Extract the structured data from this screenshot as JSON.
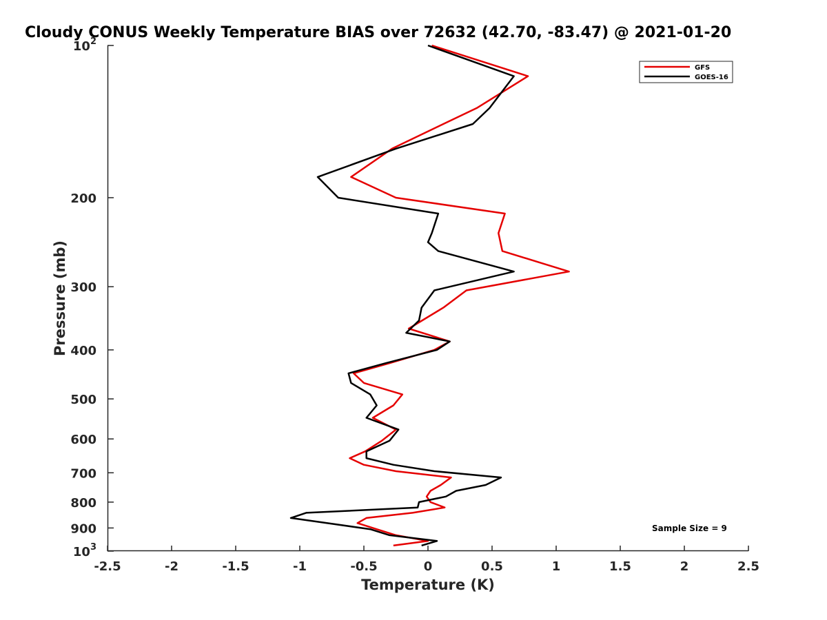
{
  "chart_data": {
    "type": "line",
    "title": "Cloudy CONUS Weekly Temperature BIAS over 72632 (42.70, -83.47) @ 2021-01-20",
    "xlabel": "Temperature (K)",
    "ylabel": "Pressure (mb)",
    "xlim": [
      -2.5,
      2.5
    ],
    "ylim": [
      100,
      1000
    ],
    "y_scale": "log",
    "y_reversed": true,
    "grid": false,
    "legend_position": "top-right",
    "annotation": "Sample Size = 9",
    "x_ticks": [
      {
        "value": -2.5,
        "label": "-2.5"
      },
      {
        "value": -2,
        "label": "-2"
      },
      {
        "value": -1.5,
        "label": "-1.5"
      },
      {
        "value": -1,
        "label": "-1"
      },
      {
        "value": -0.5,
        "label": "-0.5"
      },
      {
        "value": 0,
        "label": "0"
      },
      {
        "value": 0.5,
        "label": "0.5"
      },
      {
        "value": 1,
        "label": "1"
      },
      {
        "value": 1.5,
        "label": "1.5"
      },
      {
        "value": 2,
        "label": "2"
      },
      {
        "value": 2.5,
        "label": "2.5"
      }
    ],
    "y_ticks": [
      {
        "value": 100,
        "base": "10",
        "exp": "2"
      },
      {
        "value": 200,
        "label": "200"
      },
      {
        "value": 300,
        "label": "300"
      },
      {
        "value": 400,
        "label": "400"
      },
      {
        "value": 500,
        "label": "500"
      },
      {
        "value": 600,
        "label": "600"
      },
      {
        "value": 700,
        "label": "700"
      },
      {
        "value": 800,
        "label": "800"
      },
      {
        "value": 900,
        "label": "900"
      },
      {
        "value": 1000,
        "base": "10",
        "exp": "3"
      }
    ],
    "series": [
      {
        "name": "GFS",
        "color": "#e50000",
        "points": [
          [
            0.03,
            100
          ],
          [
            0.78,
            115
          ],
          [
            0.38,
            133
          ],
          [
            0.12,
            143
          ],
          [
            -0.28,
            160
          ],
          [
            -0.6,
            182
          ],
          [
            -0.25,
            200
          ],
          [
            0.6,
            215
          ],
          [
            0.55,
            235
          ],
          [
            0.58,
            255
          ],
          [
            1.1,
            280
          ],
          [
            0.3,
            305
          ],
          [
            0.12,
            330
          ],
          [
            -0.15,
            363
          ],
          [
            0.17,
            385
          ],
          [
            0.05,
            400
          ],
          [
            -0.3,
            425
          ],
          [
            -0.58,
            445
          ],
          [
            -0.5,
            465
          ],
          [
            -0.2,
            490
          ],
          [
            -0.27,
            515
          ],
          [
            -0.43,
            545
          ],
          [
            -0.25,
            575
          ],
          [
            -0.36,
            605
          ],
          [
            -0.49,
            635
          ],
          [
            -0.61,
            655
          ],
          [
            -0.5,
            675
          ],
          [
            -0.25,
            695
          ],
          [
            0.18,
            715
          ],
          [
            0.1,
            740
          ],
          [
            0.02,
            760
          ],
          [
            -0.01,
            780
          ],
          [
            0.02,
            800
          ],
          [
            0.13,
            820
          ],
          [
            -0.12,
            840
          ],
          [
            -0.48,
            860
          ],
          [
            -0.55,
            880
          ],
          [
            -0.4,
            905
          ],
          [
            -0.25,
            930
          ],
          [
            0.0,
            955
          ],
          [
            -0.27,
            975
          ]
        ]
      },
      {
        "name": "GOES-16",
        "color": "#000000",
        "points": [
          [
            0.0,
            100
          ],
          [
            0.67,
            115
          ],
          [
            0.48,
            133
          ],
          [
            0.35,
            143
          ],
          [
            -0.25,
            160
          ],
          [
            -0.86,
            182
          ],
          [
            -0.7,
            200
          ],
          [
            0.08,
            215
          ],
          [
            0.03,
            235
          ],
          [
            0.0,
            245
          ],
          [
            0.08,
            255
          ],
          [
            0.67,
            280
          ],
          [
            0.05,
            305
          ],
          [
            -0.05,
            330
          ],
          [
            -0.07,
            350
          ],
          [
            -0.17,
            370
          ],
          [
            0.17,
            385
          ],
          [
            0.07,
            400
          ],
          [
            -0.33,
            425
          ],
          [
            -0.62,
            445
          ],
          [
            -0.6,
            465
          ],
          [
            -0.45,
            490
          ],
          [
            -0.4,
            515
          ],
          [
            -0.48,
            545
          ],
          [
            -0.23,
            575
          ],
          [
            -0.3,
            605
          ],
          [
            -0.48,
            635
          ],
          [
            -0.48,
            655
          ],
          [
            -0.27,
            675
          ],
          [
            0.05,
            695
          ],
          [
            0.57,
            715
          ],
          [
            0.45,
            740
          ],
          [
            0.22,
            760
          ],
          [
            0.14,
            780
          ],
          [
            -0.07,
            800
          ],
          [
            -0.08,
            820
          ],
          [
            -0.95,
            840
          ],
          [
            -1.07,
            860
          ],
          [
            -0.45,
            905
          ],
          [
            -0.3,
            930
          ],
          [
            0.07,
            955
          ],
          [
            -0.05,
            975
          ]
        ]
      }
    ]
  }
}
